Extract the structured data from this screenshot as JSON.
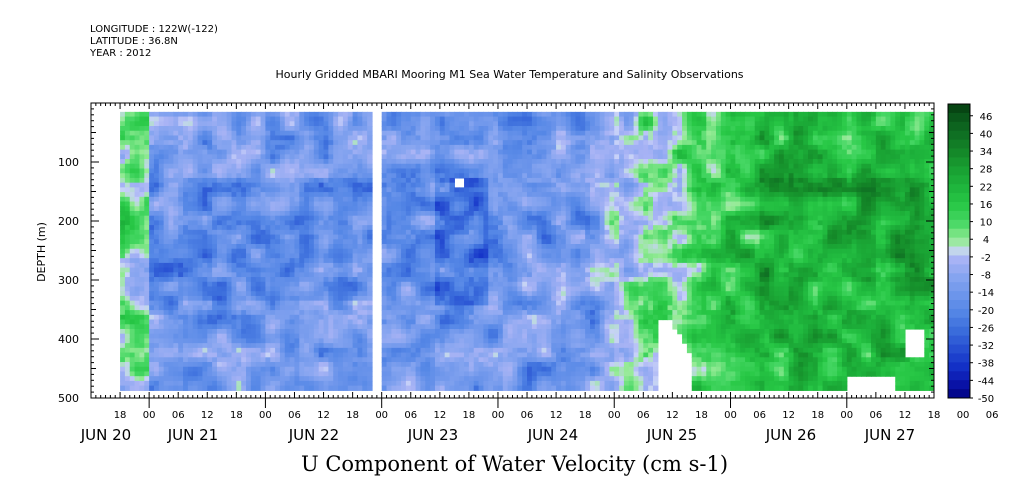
{
  "header": {
    "longitude": "LONGITUDE : 122W(-122)",
    "latitude": "LATITUDE : 36.8N",
    "year": "YEAR : 2012"
  },
  "chart_data": {
    "type": "heatmap",
    "title": "Hourly Gridded MBARI Mooring M1 Sea Water Temperature and Salinity Observations",
    "xlabel": "U Component of Water Velocity (cm s-1)",
    "ylabel": "DEPTH (m)",
    "ylim": [
      500,
      0
    ],
    "y_ticks": [
      100,
      200,
      300,
      400,
      500
    ],
    "x_range_hours": [
      "2012-06-20 12:00",
      "2012-06-27 18:00"
    ],
    "x_hour_ticks": [
      "18",
      "00",
      "06",
      "12",
      "18",
      "00",
      "06",
      "12",
      "18",
      "00",
      "06",
      "12",
      "18",
      "00",
      "06",
      "12",
      "18",
      "00",
      "06",
      "12",
      "18",
      "00",
      "06",
      "12",
      "18",
      "00",
      "06",
      "12",
      "18",
      "00",
      "06",
      "12"
    ],
    "x_day_labels": [
      "JUN 20",
      "JUN 21",
      "JUN 22",
      "JUN 23",
      "JUN 24",
      "JUN 25",
      "JUN 26",
      "JUN 27"
    ],
    "colorbar": {
      "labels": [
        "46",
        "40",
        "34",
        "28",
        "22",
        "16",
        "10",
        "4",
        "-2",
        "-8",
        "-14",
        "-20",
        "-26",
        "-32",
        "-38",
        "-44",
        "-50"
      ],
      "min": -50,
      "max": 50,
      "step": 3
    },
    "data_gaps": [
      "2012-06-22 ~23:00-00:00 (all depths)"
    ],
    "regimes": [
      {
        "period": "JUN 20 12:00 - JUN 21 00:00",
        "mean_u": 3
      },
      {
        "period": "JUN 21 00:00 - JUN 22 23:00",
        "mean_u": -12
      },
      {
        "period": "JUN 23 00:00 - JUN 24 18:00",
        "mean_u": -14
      },
      {
        "period": "JUN 24 18:00 - JUN 25 06:00",
        "mean_u": 6
      },
      {
        "period": "JUN 25 06:00 - JUN 27 18:00",
        "mean_u": 20
      }
    ]
  }
}
